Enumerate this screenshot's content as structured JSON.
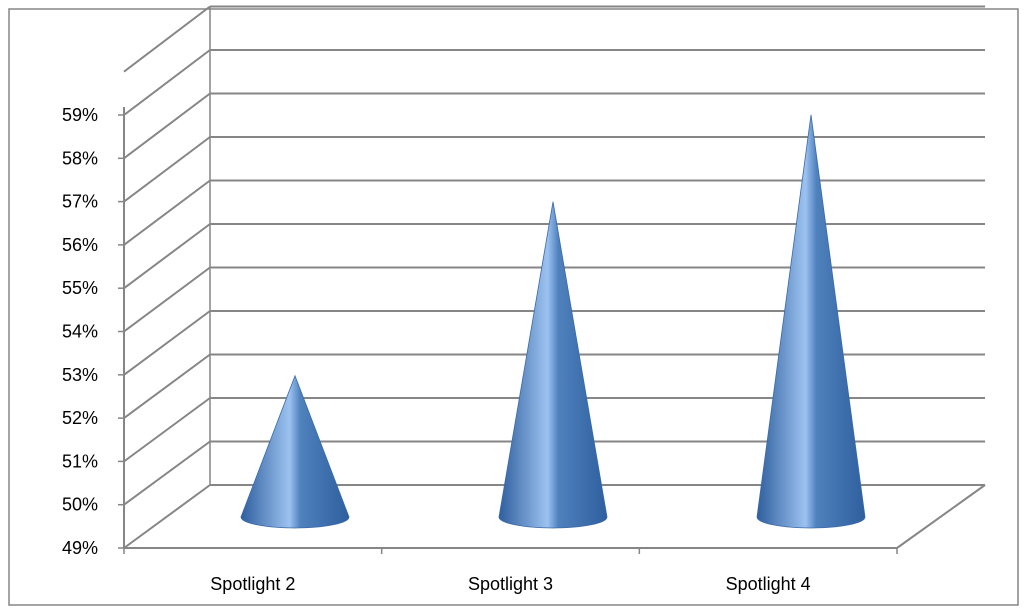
{
  "chart_data": {
    "type": "bar",
    "style": "3d-cone",
    "categories": [
      "Spotlight 2",
      "Spotlight 3",
      "Spotlight 4"
    ],
    "values": [
      52.5,
      56.5,
      58.5
    ],
    "ylim": [
      49,
      59
    ],
    "yticks": [
      "49%",
      "50%",
      "51%",
      "52%",
      "53%",
      "54%",
      "55%",
      "56%",
      "57%",
      "58%",
      "59%"
    ],
    "grid": true,
    "legend": "none",
    "title": "",
    "xlabel": "",
    "ylabel": "",
    "colors": {
      "cone_dark": "#2F5F9E",
      "cone_mid": "#4F81BD",
      "cone_light": "#9CC2F0",
      "grid": "#868686",
      "frame": "#868686"
    }
  }
}
